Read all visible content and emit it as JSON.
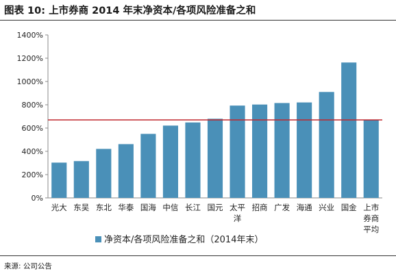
{
  "title": "图表 10: 上市券商 2014 年末净资本/各项风险准备之和",
  "source": "来源: 公司公告",
  "colors": {
    "bar": "#4a90b8",
    "reference_line": "#c0272d",
    "axis": "#888888"
  },
  "chart_data": {
    "type": "bar",
    "categories": [
      "光大",
      "东吴",
      "东北",
      "华泰",
      "国海",
      "中信",
      "长江",
      "国元",
      "太平洋",
      "招商",
      "广发",
      "海通",
      "兴业",
      "国金",
      "上市券商平均"
    ],
    "series": [
      {
        "name": "净资本/各项风险准备之和（2014年末）",
        "values": [
          303,
          316,
          421,
          462,
          550,
          621,
          648,
          680,
          793,
          802,
          815,
          820,
          910,
          1163,
          670
        ]
      }
    ],
    "reference_line": 670,
    "ylim": [
      0,
      1400
    ],
    "yticks": [
      "0%",
      "200%",
      "400%",
      "600%",
      "800%",
      "1000%",
      "1200%",
      "1400%"
    ],
    "ytick_values": [
      0,
      200,
      400,
      600,
      800,
      1000,
      1200,
      1400
    ],
    "grid": false,
    "legend": "bottom"
  }
}
